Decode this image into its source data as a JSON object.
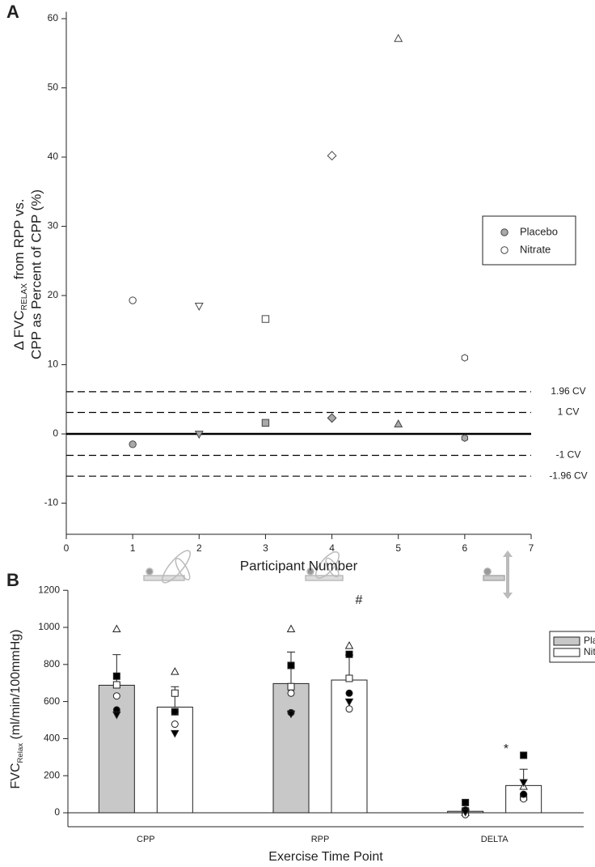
{
  "chart_data": [
    {
      "type": "scatter",
      "label": "A",
      "ylabel": {
        "pre": "Δ FVC",
        "sub": "RELAX",
        "post": " from RPP vs.",
        "line2": "CPP as Percent of CPP (%)"
      },
      "xlabel": "Participant Number",
      "x": [
        1,
        2,
        3,
        4,
        5,
        6
      ],
      "markers": [
        "circle",
        "triangle-down",
        "square",
        "diamond",
        "triangle-up",
        "hexagon"
      ],
      "series": [
        {
          "name": "Placebo",
          "color": "#a9a9a9",
          "values": [
            -1.5,
            0,
            1.6,
            2.3,
            1.4,
            -0.6
          ]
        },
        {
          "name": "Nitrate",
          "color": "#ffffff",
          "values": [
            19.3,
            18.5,
            16.6,
            40.2,
            57.1,
            11.0
          ]
        }
      ],
      "ref_lines": [
        {
          "value": 6.1,
          "label": "1.96 CV"
        },
        {
          "value": 3.1,
          "label": "1 CV"
        },
        {
          "value": -3.1,
          "label": "-1 CV"
        },
        {
          "value": -6.1,
          "label": "-1.96 CV"
        }
      ],
      "xlim": [
        0,
        7
      ],
      "xticks": [
        0,
        1,
        2,
        3,
        4,
        5,
        6,
        7
      ],
      "ylim": [
        -14.5,
        61
      ],
      "yticks": [
        -10,
        0,
        10,
        20,
        30,
        40,
        50,
        60
      ],
      "legend": "right"
    },
    {
      "type": "bar",
      "label": "B",
      "ylabel": {
        "pre": "FVC",
        "sub": "Relax",
        "post": " (ml/min/100mmHg)"
      },
      "xlabel": "Exercise Time Point",
      "categories": [
        "CPP",
        "RPP",
        "DELTA"
      ],
      "point_markers": [
        "triangle-up",
        "square",
        "square",
        "circle",
        "circle",
        "triangle-down"
      ],
      "point_fills": [
        "#ffffff",
        "#000000",
        "#ffffff",
        "#ffffff",
        "#000000",
        "#000000"
      ],
      "series": [
        {
          "name": "Placebo",
          "color": "#c8c8c8",
          "values": [
            688,
            697,
            8
          ],
          "errors": [
            165,
            170,
            5
          ],
          "points": [
            [
              990,
              737,
              690,
              630,
              555,
              530
            ],
            [
              990,
              795,
              680,
              645,
              540,
              535
            ],
            [
              0,
              55,
              10,
              -10,
              15,
              5
            ]
          ]
        },
        {
          "name": "Nitrate",
          "color": "#ffffff",
          "values": [
            570,
            716,
            147
          ],
          "errors": [
            110,
            135,
            88
          ],
          "points": [
            [
              760,
              545,
              645,
              478,
              545,
              430
            ],
            [
              900,
              855,
              725,
              560,
              645,
              600
            ],
            [
              140,
              310,
              85,
              75,
              100,
              165
            ]
          ]
        }
      ],
      "annotations": [
        "#",
        "*"
      ],
      "ylim": [
        -75,
        1200
      ],
      "yticks": [
        0,
        200,
        400,
        600,
        800,
        1000,
        1200
      ],
      "legend": "upper right"
    }
  ]
}
